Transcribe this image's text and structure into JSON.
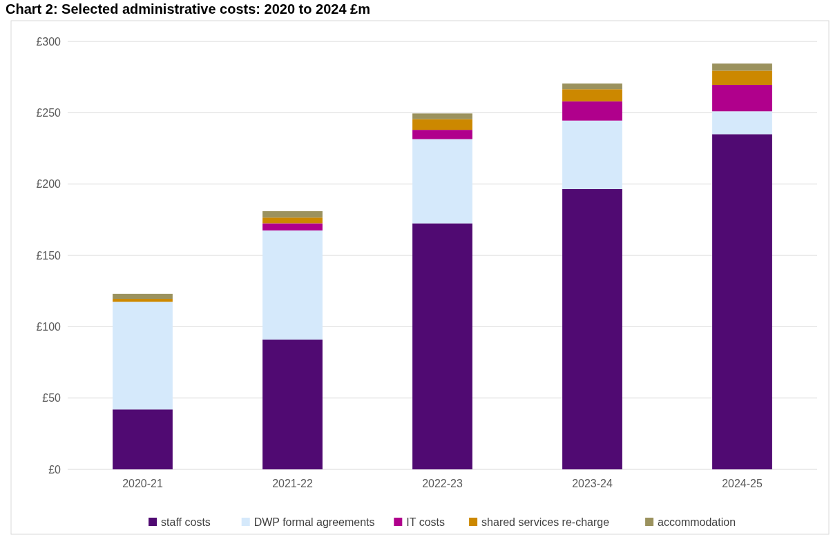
{
  "chart_data": {
    "type": "bar",
    "title": "Chart 2: Selected administrative costs: 2020 to 2024 £m",
    "stacked": true,
    "categories": [
      "2020-21",
      "2021-22",
      "2022-23",
      "2023-24",
      "2024-25"
    ],
    "series": [
      {
        "name": "staff costs",
        "color": "#500a72",
        "values": [
          42,
          91,
          172.5,
          196.5,
          235
        ]
      },
      {
        "name": "DWP formal agreements",
        "color": "#d5e9fb",
        "values": [
          75.5,
          76.5,
          59,
          48,
          16
        ]
      },
      {
        "name": "IT costs",
        "color": "#b0008c",
        "values": [
          0,
          5,
          6.5,
          13.5,
          18.5
        ]
      },
      {
        "name": "shared services re-charge",
        "color": "#cc8800",
        "values": [
          2,
          4,
          7.5,
          8.5,
          10
        ]
      },
      {
        "name": "accommodation",
        "color": "#9b925e",
        "values": [
          3.5,
          4.5,
          4,
          4,
          5
        ]
      }
    ],
    "ylim": [
      0,
      300
    ],
    "yticks": [
      {
        "value": 0,
        "label": "£0"
      },
      {
        "value": 50,
        "label": "£50"
      },
      {
        "value": 100,
        "label": "£100"
      },
      {
        "value": 150,
        "label": "£150"
      },
      {
        "value": 200,
        "label": "£200"
      },
      {
        "value": 250,
        "label": "£250"
      },
      {
        "value": 300,
        "label": "£300"
      }
    ],
    "grid": "y",
    "legend": "bottom"
  }
}
